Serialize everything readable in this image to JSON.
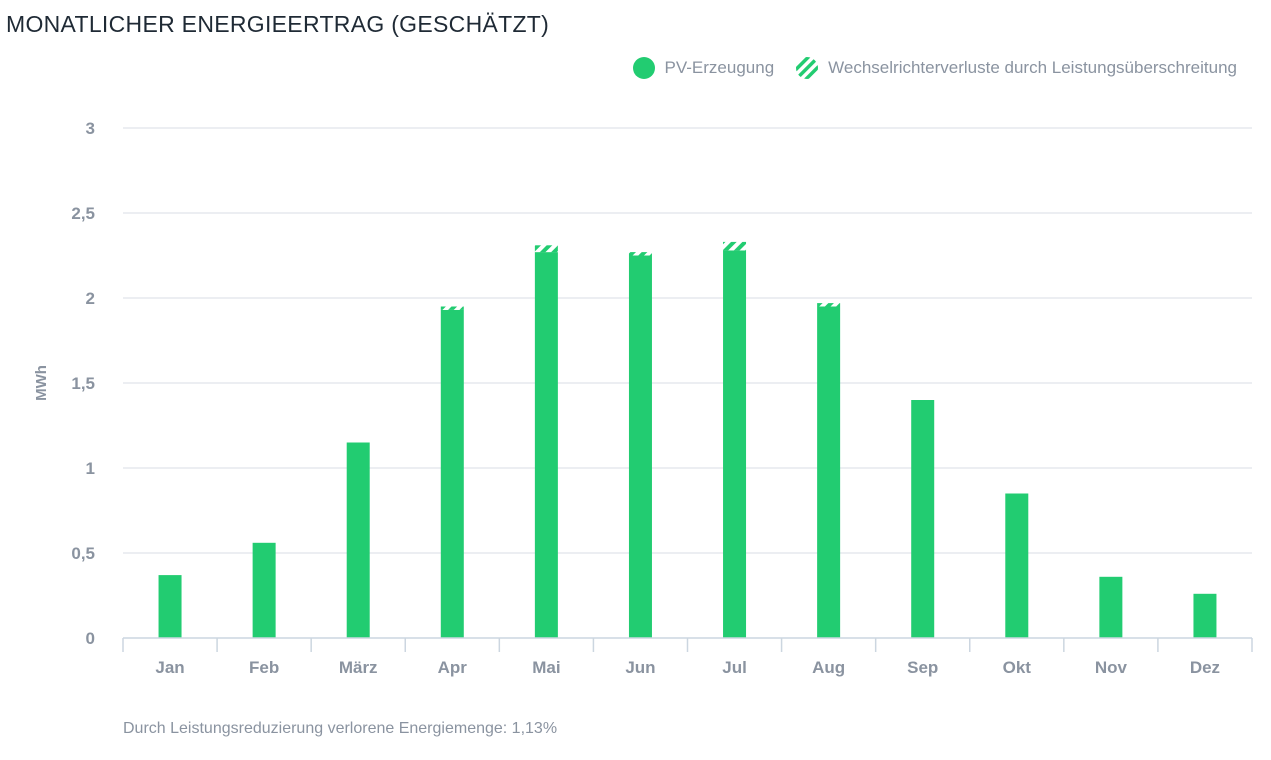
{
  "header": {
    "title": "MONATLICHER ENERGIEERTRAG (GESCHÄTZT)"
  },
  "legend": {
    "items": [
      {
        "label": "PV-Erzeugung",
        "color": "#22cc71",
        "icon": "filled-circle-icon"
      },
      {
        "label": "Wechselrichterverluste durch Leistungsüberschreitung",
        "color": "#22cc71",
        "icon": "striped-circle-icon"
      }
    ]
  },
  "footer": {
    "note": "Durch Leistungsreduzierung verlorene Energiemenge: 1,13%"
  },
  "chart_data": {
    "type": "bar",
    "stacked": true,
    "ylabel": "MWh",
    "ylim": [
      0,
      3
    ],
    "yticks": [
      "0",
      "0,5",
      "1",
      "1,5",
      "2",
      "2,5",
      "3"
    ],
    "grid": true,
    "legend_position": "top-right",
    "categories": [
      "Jan",
      "Feb",
      "März",
      "Apr",
      "Mai",
      "Jun",
      "Jul",
      "Aug",
      "Sep",
      "Okt",
      "Nov",
      "Dez"
    ],
    "series": [
      {
        "name": "PV-Erzeugung",
        "color": "#22cc71",
        "values": [
          0.37,
          0.56,
          1.15,
          1.93,
          2.27,
          2.25,
          2.28,
          1.95,
          1.4,
          0.85,
          0.36,
          0.26
        ]
      },
      {
        "name": "Wechselrichterverluste durch Leistungsüberschreitung",
        "color": "#22cc71",
        "pattern": "hatched",
        "values": [
          0,
          0,
          0,
          0.02,
          0.04,
          0.02,
          0.05,
          0.02,
          0,
          0,
          0,
          0
        ]
      }
    ]
  }
}
